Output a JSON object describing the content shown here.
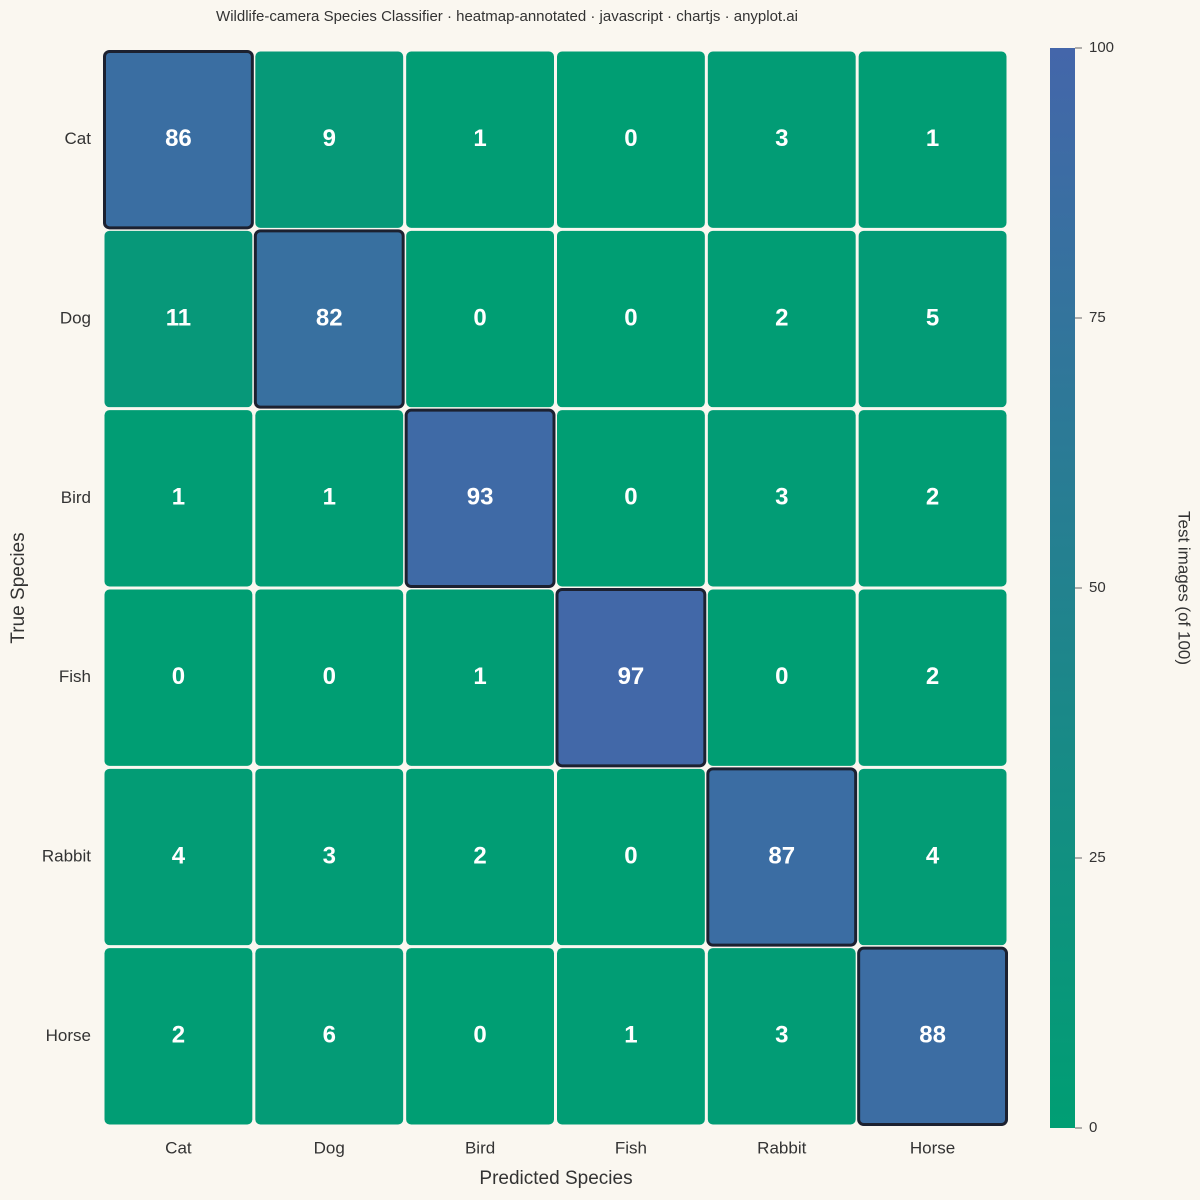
{
  "chart_data": {
    "type": "heatmap",
    "title": "Wildlife-camera Species Classifier · heatmap-annotated · javascript · chartjs · anyplot.ai",
    "x_label": "Predicted Species",
    "y_label": "True Species",
    "colorbar_label": "Test images (of 100)",
    "x_categories": [
      "Cat",
      "Dog",
      "Bird",
      "Fish",
      "Rabbit",
      "Horse"
    ],
    "y_categories": [
      "Cat",
      "Dog",
      "Bird",
      "Fish",
      "Rabbit",
      "Horse"
    ],
    "values": [
      [
        86,
        9,
        1,
        0,
        3,
        1
      ],
      [
        11,
        82,
        0,
        0,
        2,
        5
      ],
      [
        1,
        1,
        93,
        0,
        3,
        2
      ],
      [
        0,
        0,
        1,
        97,
        0,
        2
      ],
      [
        4,
        3,
        2,
        0,
        87,
        4
      ],
      [
        2,
        6,
        0,
        1,
        3,
        88
      ]
    ],
    "zlim": [
      0,
      100
    ],
    "zticks": [
      0,
      25,
      50,
      75,
      100
    ],
    "color_low": "#009E73",
    "color_high": "#4466AA",
    "diagonal_outline_color": "#1c2130"
  }
}
